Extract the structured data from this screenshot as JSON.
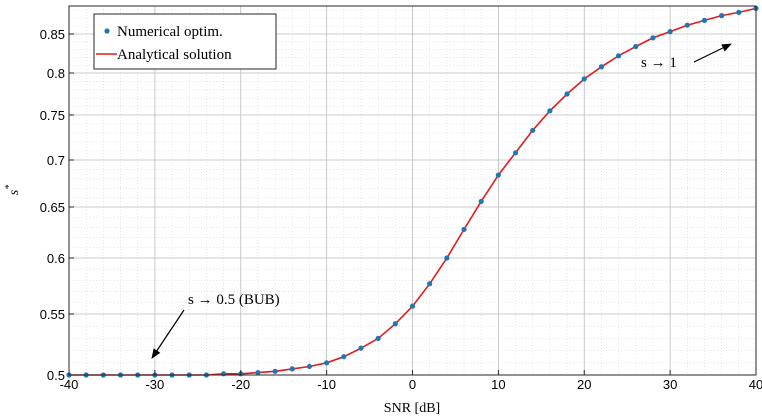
{
  "chart_data": {
    "type": "line",
    "xlabel": "SNR [dB]",
    "ylabel_base": "s",
    "ylabel_sup": "*",
    "xlim": [
      -40,
      40
    ],
    "ylim": [
      0.5,
      0.885
    ],
    "y_scale": "nonlinear",
    "x_ticks": [
      -40,
      -30,
      -20,
      -10,
      0,
      10,
      20,
      30,
      40
    ],
    "x_tick_labels": [
      "-40",
      "-30",
      "-20",
      "-10",
      "0",
      "10",
      "20",
      "30",
      "40"
    ],
    "y_ticks": [
      0.5,
      0.55,
      0.6,
      0.65,
      0.7,
      0.75,
      0.8,
      0.85
    ],
    "y_tick_labels": [
      "0.5",
      "0.55",
      "0.6",
      "0.65",
      "0.7",
      "0.75",
      "0.8",
      "0.85"
    ],
    "grid": true,
    "legend_position": "top-left",
    "series": [
      {
        "name": "Numerical optim.",
        "kind": "scatter",
        "color": "#1f77b4",
        "x": [
          -40,
          -38,
          -36,
          -34,
          -32,
          -30,
          -28,
          -26,
          -24,
          -22,
          -20,
          -18,
          -16,
          -14,
          -12,
          -10,
          -8,
          -6,
          -4,
          -2,
          0,
          2,
          4,
          6,
          8,
          10,
          12,
          14,
          16,
          18,
          20,
          22,
          24,
          26,
          28,
          30,
          32,
          34,
          36,
          38,
          40
        ],
        "y": [
          0.5,
          0.5,
          0.5,
          0.5,
          0.5,
          0.5,
          0.5,
          0.5,
          0.5,
          0.501,
          0.501,
          0.502,
          0.503,
          0.505,
          0.507,
          0.51,
          0.515,
          0.522,
          0.53,
          0.542,
          0.557,
          0.577,
          0.6,
          0.628,
          0.656,
          0.684,
          0.708,
          0.733,
          0.755,
          0.775,
          0.793,
          0.808,
          0.822,
          0.834,
          0.845,
          0.853,
          0.861,
          0.867,
          0.873,
          0.877,
          0.882
        ]
      },
      {
        "name": "Analytical solution",
        "kind": "line",
        "color": "#e41a1c",
        "x": [
          -40,
          -38,
          -36,
          -34,
          -32,
          -30,
          -28,
          -26,
          -24,
          -22,
          -20,
          -18,
          -16,
          -14,
          -12,
          -10,
          -8,
          -6,
          -4,
          -2,
          0,
          2,
          4,
          6,
          8,
          10,
          12,
          14,
          16,
          18,
          20,
          22,
          24,
          26,
          28,
          30,
          32,
          34,
          36,
          38,
          40
        ],
        "y": [
          0.5,
          0.5,
          0.5,
          0.5,
          0.5,
          0.5,
          0.5,
          0.5,
          0.5,
          0.501,
          0.501,
          0.502,
          0.503,
          0.505,
          0.507,
          0.51,
          0.515,
          0.522,
          0.53,
          0.542,
          0.557,
          0.577,
          0.6,
          0.628,
          0.656,
          0.684,
          0.708,
          0.733,
          0.755,
          0.775,
          0.793,
          0.808,
          0.822,
          0.834,
          0.845,
          0.853,
          0.861,
          0.867,
          0.873,
          0.877,
          0.882
        ]
      }
    ],
    "annotations": [
      {
        "text": "s → 0.5 (BUB)",
        "arrow_to": [
          -30,
          0.5
        ],
        "position": "above-right"
      },
      {
        "text": "s → 1",
        "arrow_to": [
          40,
          0.85
        ],
        "position": "left"
      }
    ]
  }
}
